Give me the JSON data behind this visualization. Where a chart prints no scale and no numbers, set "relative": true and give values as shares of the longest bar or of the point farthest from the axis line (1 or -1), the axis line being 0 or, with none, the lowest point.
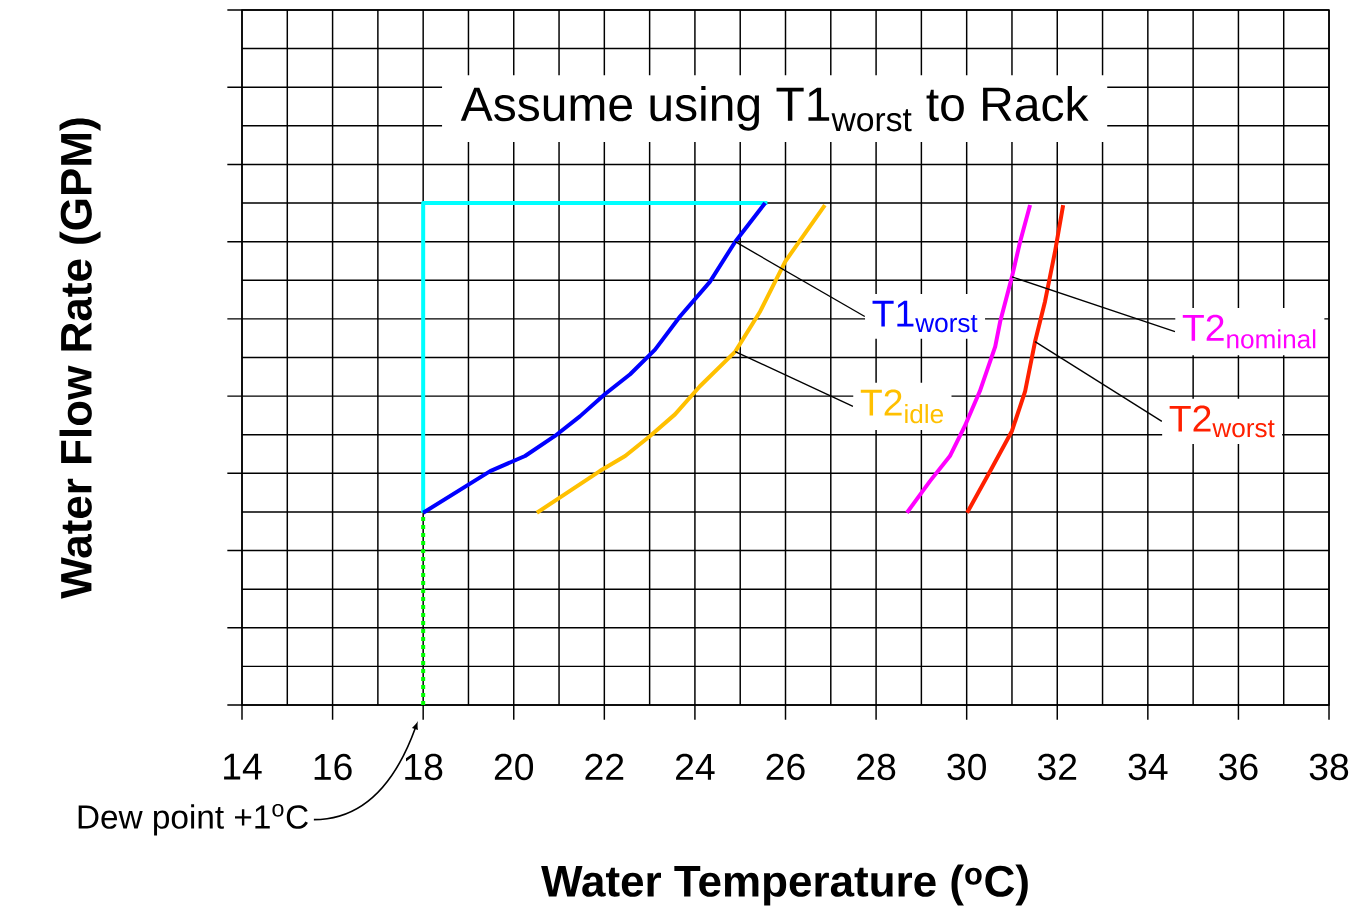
{
  "chart_data": {
    "type": "line",
    "title": "Assume using T1$_{worst}$ to Rack",
    "xlabel": "Water Temperature ($^{o}$C)",
    "ylabel": "Water Flow Rate (GPM)",
    "relative": true,
    "xlim": [
      14,
      38
    ],
    "xticks": [
      14,
      16,
      18,
      20,
      22,
      24,
      26,
      28,
      30,
      32,
      34,
      36,
      38
    ],
    "grid": true,
    "series": [
      {
        "color": "#00ffff",
        "x": [
          18,
          18,
          25.6
        ],
        "values": [
          0.383,
          1,
          1
        ]
      },
      {
        "color": "#00ff00",
        "line_style": "dotted",
        "x": [
          18,
          18
        ],
        "values": [
          0,
          0.383
        ]
      },
      {
        "name": "T1$_{worst}$",
        "color": "#0000ff",
        "x": [
          18.0,
          19.48,
          20.25,
          20.91,
          21.46,
          22.01,
          22.57,
          23.12,
          23.67,
          24.33,
          24.89,
          25.55
        ],
        "values": [
          0.383,
          0.466,
          0.496,
          0.536,
          0.575,
          0.619,
          0.659,
          0.708,
          0.774,
          0.843,
          0.923,
          1.0
        ]
      },
      {
        "name": "T2$_{idle}$",
        "color": "#ffc000",
        "x": [
          20.51,
          21.9,
          22.46,
          23.01,
          23.56,
          24.11,
          24.89,
          25.44,
          25.99,
          26.87
        ],
        "values": [
          0.383,
          0.466,
          0.496,
          0.536,
          0.579,
          0.635,
          0.704,
          0.784,
          0.883,
          0.996
        ]
      },
      {
        "name": "T2$_{nominal}$",
        "color": "#ff00ff",
        "x": [
          28.68,
          29.19,
          29.63,
          29.96,
          30.29,
          30.63,
          30.74,
          31.0,
          31.18,
          31.4
        ],
        "values": [
          0.383,
          0.446,
          0.496,
          0.556,
          0.625,
          0.714,
          0.764,
          0.853,
          0.923,
          0.996
        ]
      },
      {
        "name": "T2$_{worst}$",
        "color": "#ff2000",
        "x": [
          30.01,
          30.52,
          31.0,
          31.29,
          31.51,
          31.73,
          31.95,
          32.13
        ],
        "values": [
          0.383,
          0.466,
          0.546,
          0.625,
          0.724,
          0.804,
          0.903,
          0.996
        ]
      }
    ],
    "annotations": [
      "Dew point +1$^{o}$C"
    ]
  }
}
